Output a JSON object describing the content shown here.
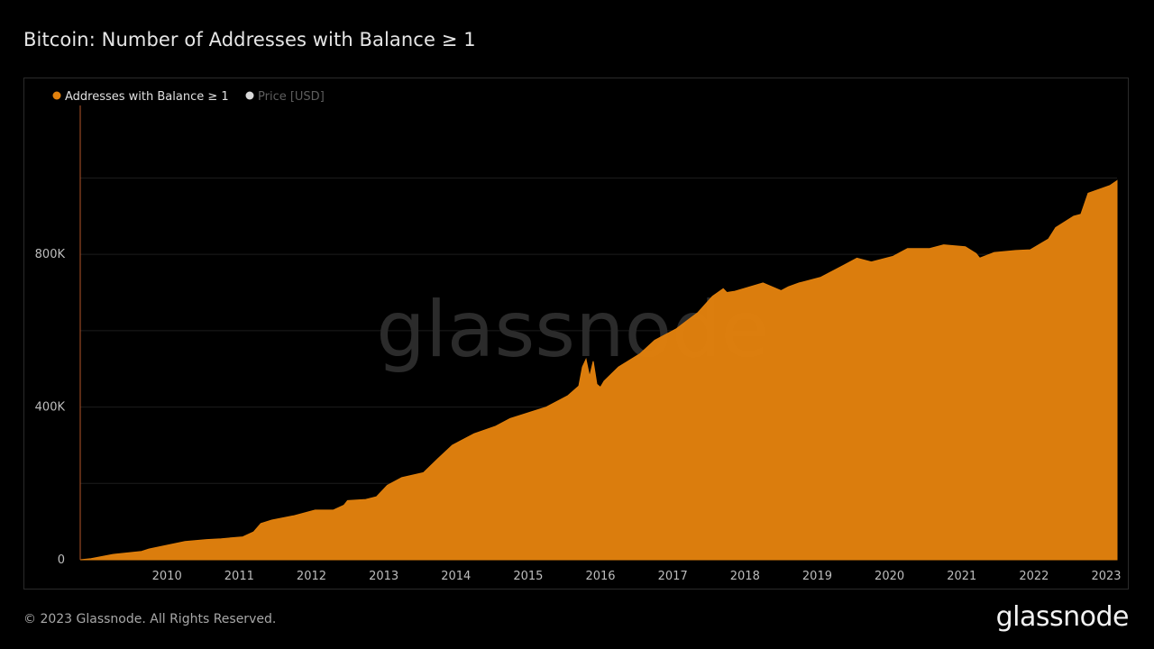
{
  "page": {
    "title": "Bitcoin: Number of Addresses with Balance ≥ 1",
    "footer": "© 2023 Glassnode. All Rights Reserved.",
    "brand": "glassnode",
    "watermark": "glassnode"
  },
  "colors": {
    "series": "#e2810d",
    "price": "#d9d9d9",
    "background": "#000000",
    "grid": "#1c1c1c",
    "axis_line": "#b5562a"
  },
  "chart_data": {
    "type": "area",
    "title": "Bitcoin: Number of Addresses with Balance ≥ 1",
    "legend": [
      "Addresses with Balance ≥ 1",
      "Price [USD]"
    ],
    "legend_placement": "top-left",
    "grid": true,
    "y_ticks": [
      "0",
      "400K",
      "800K"
    ],
    "x_ticks": [
      "2010",
      "2011",
      "2012",
      "2013",
      "2014",
      "2015",
      "2016",
      "2017",
      "2018",
      "2019",
      "2020",
      "2021",
      "2022",
      "2023"
    ],
    "ylim": [
      0,
      1190000
    ],
    "xlim": [
      2009.05,
      2023.4
    ],
    "series": [
      {
        "name": "Addresses with Balance ≥ 1",
        "x": [
          2009.05,
          2009.2,
          2009.5,
          2009.9,
          2010.0,
          2010.2,
          2010.5,
          2010.8,
          2011.0,
          2011.3,
          2011.45,
          2011.55,
          2011.7,
          2012.0,
          2012.3,
          2012.55,
          2012.7,
          2012.75,
          2013.0,
          2013.15,
          2013.3,
          2013.5,
          2013.8,
          2014.0,
          2014.2,
          2014.5,
          2014.8,
          2015.0,
          2015.5,
          2015.8,
          2015.95,
          2016.0,
          2016.05,
          2016.1,
          2016.15,
          2016.2,
          2016.25,
          2016.3,
          2016.5,
          2016.8,
          2017.0,
          2017.3,
          2017.6,
          2017.8,
          2017.95,
          2018.0,
          2018.1,
          2018.5,
          2018.75,
          2018.85,
          2019.0,
          2019.3,
          2019.6,
          2019.8,
          2020.0,
          2020.3,
          2020.5,
          2020.8,
          2021.0,
          2021.3,
          2021.45,
          2021.5,
          2021.7,
          2022.0,
          2022.2,
          2022.45,
          2022.55,
          2022.8,
          2022.9,
          2023.0,
          2023.3,
          2023.4
        ],
        "values": [
          0,
          3000,
          14000,
          22000,
          28000,
          36000,
          48000,
          53000,
          55000,
          60000,
          73000,
          95000,
          104000,
          115000,
          130000,
          130000,
          143000,
          155000,
          158000,
          165000,
          195000,
          215000,
          228000,
          265000,
          300000,
          330000,
          350000,
          370000,
          400000,
          430000,
          455000,
          505000,
          525000,
          480000,
          520000,
          460000,
          452000,
          468000,
          505000,
          540000,
          575000,
          605000,
          648000,
          690000,
          710000,
          700000,
          703000,
          725000,
          705000,
          715000,
          725000,
          740000,
          770000,
          790000,
          780000,
          795000,
          815000,
          815000,
          825000,
          820000,
          802000,
          790000,
          805000,
          810000,
          812000,
          840000,
          870000,
          900000,
          905000,
          960000,
          980000,
          993000
        ]
      },
      {
        "name": "Price [USD]",
        "visible": false,
        "values": []
      }
    ]
  }
}
